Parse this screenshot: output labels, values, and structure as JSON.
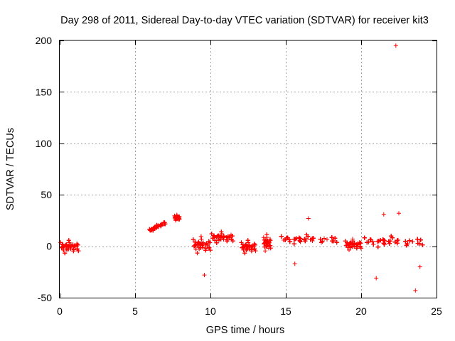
{
  "chart_data": {
    "type": "scatter",
    "title": "Day 298 of 2011, Sidereal Day-to-day VTEC variation (SDTVAR) for receiver kit3",
    "xlabel": "GPS time / hours",
    "ylabel": "SDTVAR / TECUs",
    "xlim": [
      0,
      25
    ],
    "ylim": [
      -50,
      200
    ],
    "xticks": [
      0,
      5,
      10,
      15,
      20,
      25
    ],
    "yticks": [
      -50,
      0,
      50,
      100,
      150,
      200
    ],
    "xtick_labels": [
      "0",
      "5",
      "10",
      "15",
      "20",
      "25"
    ],
    "ytick_labels": [
      "-50",
      "0",
      "50",
      "100",
      "150",
      "200"
    ],
    "grid": true,
    "marker": "+",
    "series_color": "#ff0000",
    "clusters": [
      {
        "x_range": [
          0.0,
          1.25
        ],
        "y_center": 0,
        "y_spread": 7
      },
      {
        "x_range": [
          5.9,
          7.0
        ],
        "y_center_start": 15,
        "y_center_end": 23,
        "y_spread": 2
      },
      {
        "x_range": [
          7.6,
          7.95
        ],
        "y_center": 28,
        "y_spread": 3
      },
      {
        "x_range": [
          8.8,
          10.0
        ],
        "y_center": 2,
        "y_spread": 9
      },
      {
        "x_range": [
          10.0,
          11.5
        ],
        "y_center": 9,
        "y_spread": 6
      },
      {
        "x_range": [
          12.0,
          13.0
        ],
        "y_center": 0,
        "y_spread": 7
      },
      {
        "x_range": [
          13.5,
          14.0
        ],
        "y_center": 4,
        "y_spread": 9
      },
      {
        "x_range": [
          14.5,
          18.4
        ],
        "y_center": 7,
        "y_spread": 5
      },
      {
        "x_range": [
          18.9,
          20.0
        ],
        "y_center": 2,
        "y_spread": 6
      },
      {
        "x_range": [
          20.0,
          24.1
        ],
        "y_center": 5,
        "y_spread": 6
      }
    ],
    "outliers": [
      {
        "x": 22.3,
        "y": 195
      },
      {
        "x": 23.6,
        "y": -43
      },
      {
        "x": 21.0,
        "y": -31
      },
      {
        "x": 15.6,
        "y": -17
      },
      {
        "x": 9.6,
        "y": -28
      },
      {
        "x": 16.5,
        "y": 27
      },
      {
        "x": 21.5,
        "y": 31
      },
      {
        "x": 22.5,
        "y": 32
      },
      {
        "x": 23.9,
        "y": -20
      }
    ]
  }
}
